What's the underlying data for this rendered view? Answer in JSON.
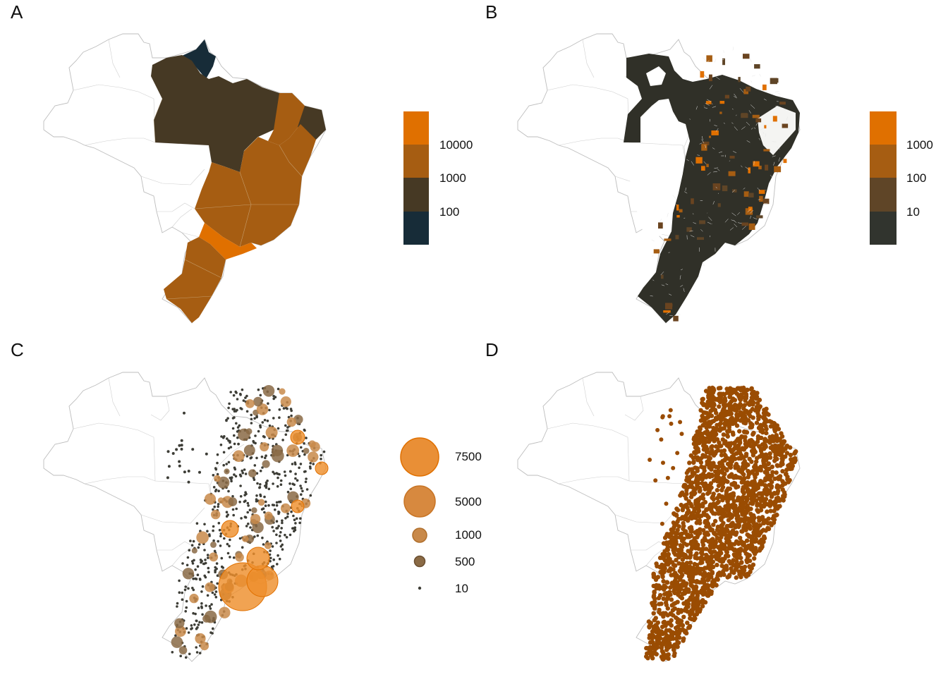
{
  "panels": [
    {
      "letter": "A",
      "type": "state choropleth"
    },
    {
      "letter": "B",
      "type": "municipality choropleth"
    },
    {
      "letter": "C",
      "type": "proportional symbols"
    },
    {
      "letter": "D",
      "type": "dot map"
    }
  ],
  "colors": {
    "orange": "#e07000",
    "mid_brown": "#a65d12",
    "dark_brown": "#463924",
    "navy": "#172c38",
    "b_mid": "#6a4420",
    "b_dark": "#303028",
    "d_dot": "#9a4c02",
    "c_small": "#3d3d36",
    "outline": "#bdbdbd"
  },
  "legend_a": {
    "colors": [
      "#e07000",
      "#a65d12",
      "#463924",
      "#172c38"
    ],
    "labels": [
      "10000",
      "1000",
      "100"
    ]
  },
  "legend_b": {
    "colors": [
      "#e07000",
      "#a65d12",
      "#5f4527",
      "#31342e"
    ],
    "labels": [
      "1000",
      "100",
      "10"
    ]
  },
  "legend_c": {
    "labels": [
      "7500",
      "5000",
      "1000",
      "500",
      "10"
    ],
    "values": [
      7500,
      5000,
      1000,
      500,
      10
    ]
  }
}
